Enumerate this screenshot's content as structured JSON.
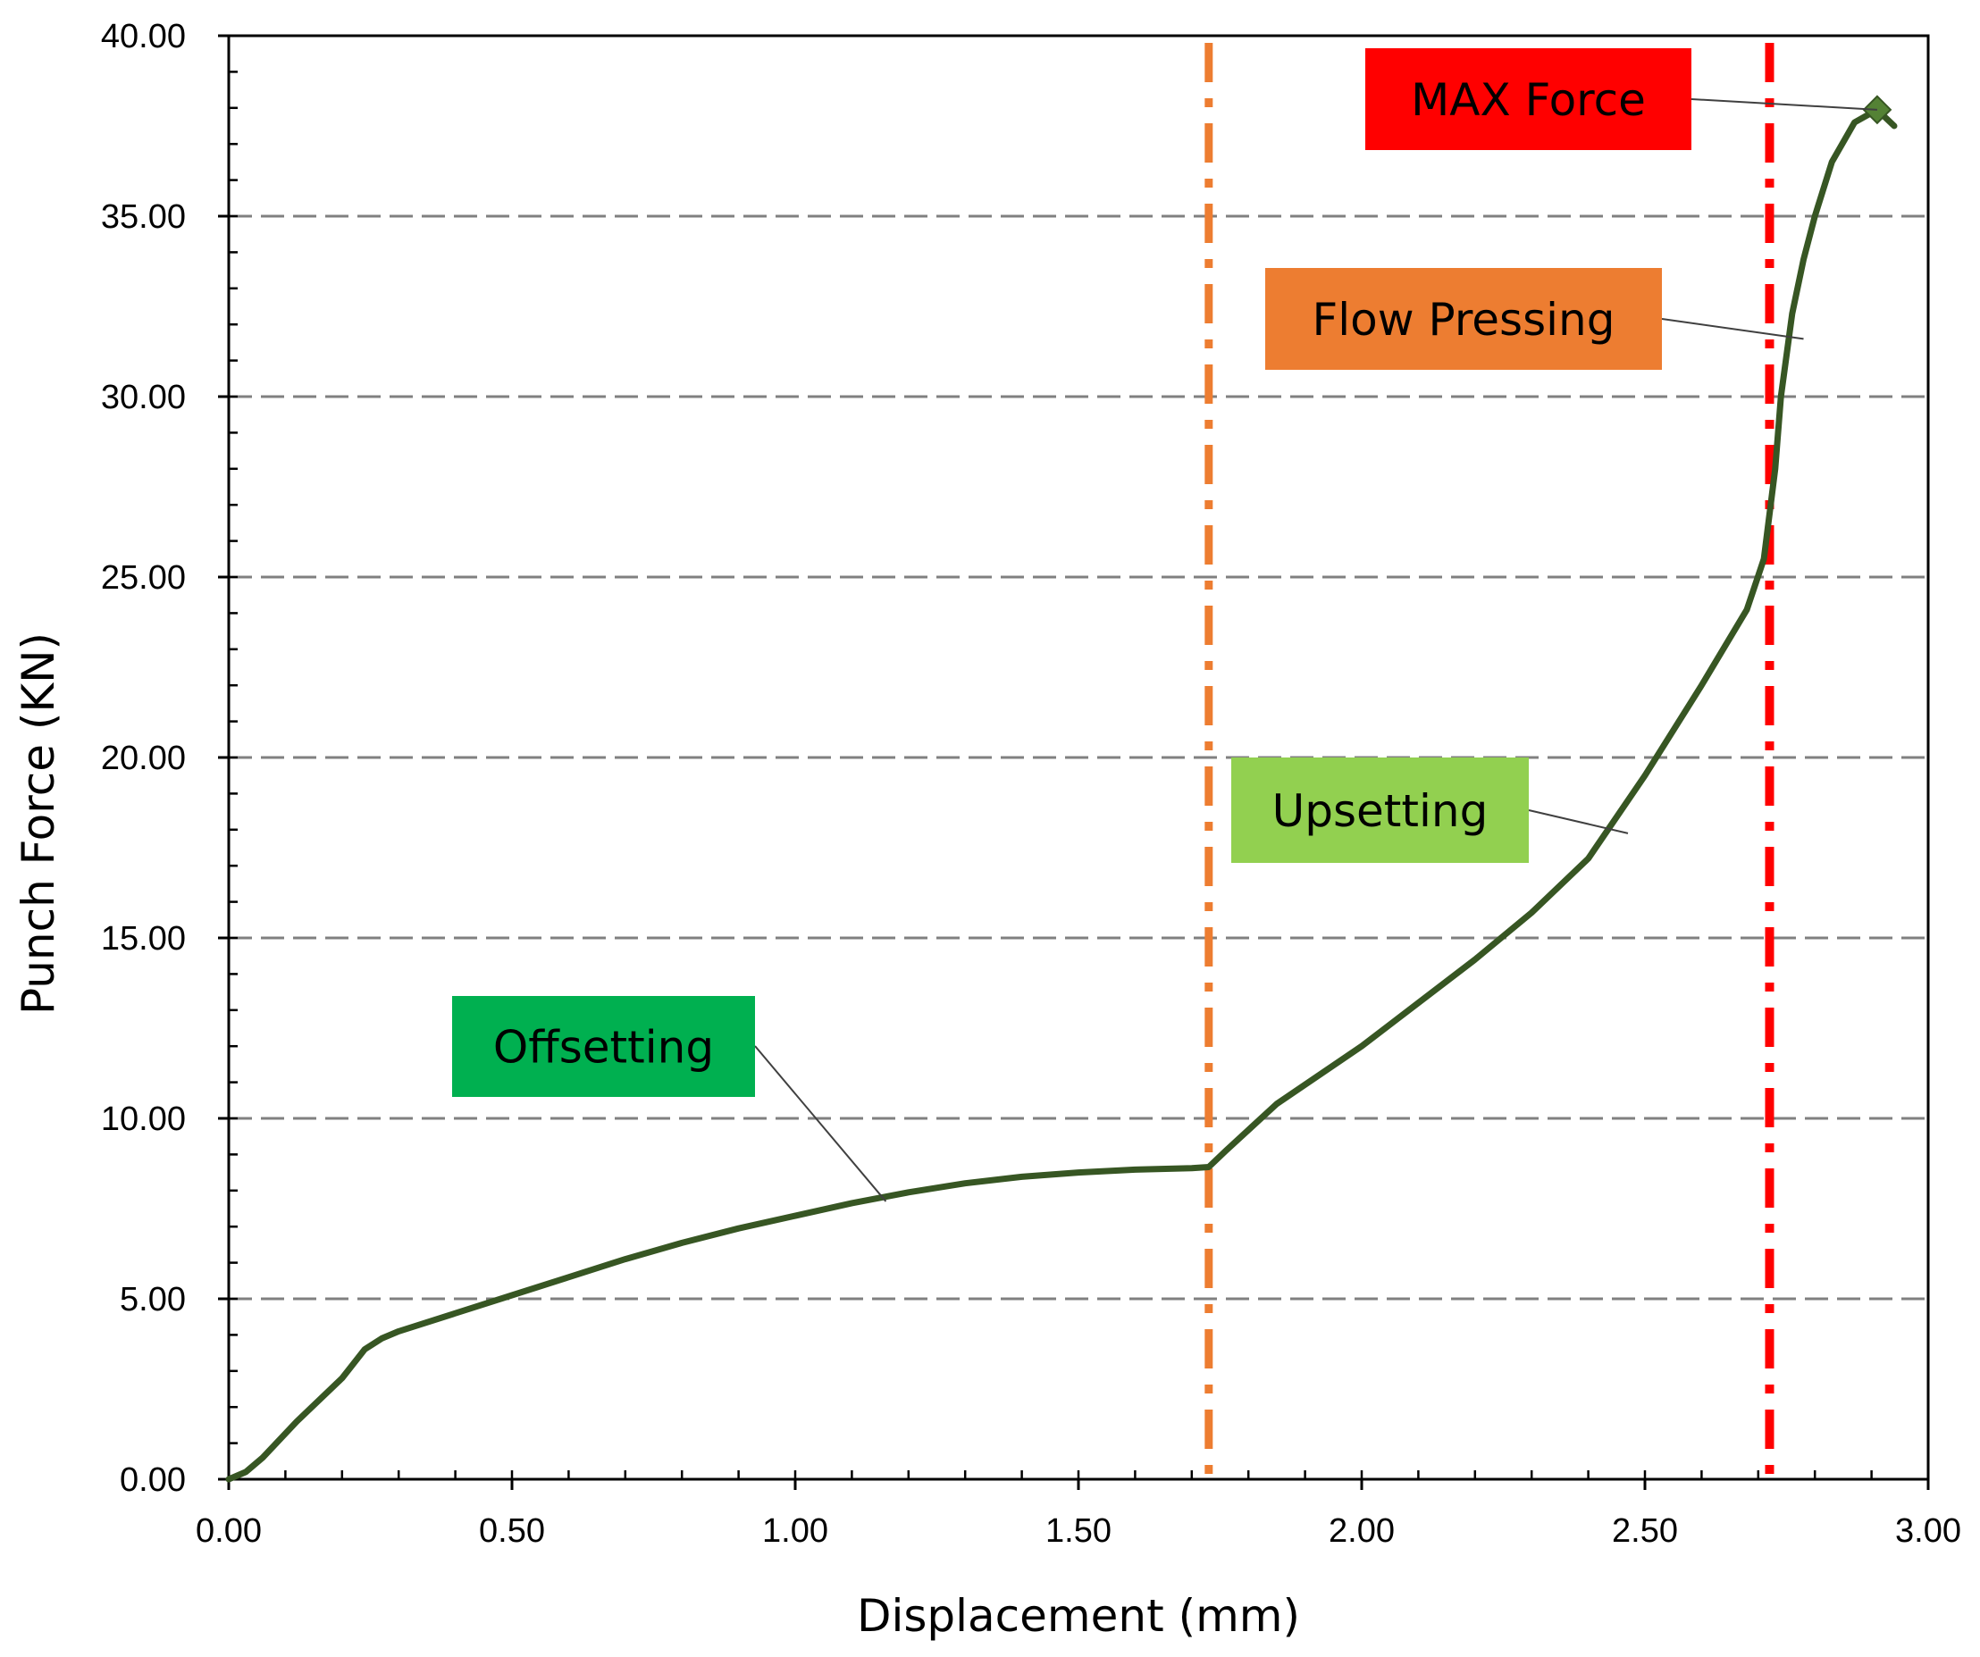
{
  "chart_data": {
    "type": "line",
    "xlabel": "Displacement (mm)",
    "ylabel": "Punch Force (KN)",
    "xlim": [
      0,
      3
    ],
    "ylim": [
      0,
      40
    ],
    "x_ticks": [
      "0.00",
      "0.50",
      "1.00",
      "1.50",
      "2.00",
      "2.50",
      "3.00"
    ],
    "y_ticks": [
      "0.00",
      "5.00",
      "10.00",
      "15.00",
      "20.00",
      "25.00",
      "30.00",
      "35.00",
      "40.00"
    ],
    "grid": "horizontal dashed",
    "series": [
      {
        "name": "Punch force curve",
        "color": "#375623",
        "x": [
          0.0,
          0.03,
          0.06,
          0.12,
          0.2,
          0.24,
          0.27,
          0.3,
          0.4,
          0.5,
          0.6,
          0.7,
          0.8,
          0.9,
          1.0,
          1.1,
          1.2,
          1.3,
          1.4,
          1.5,
          1.6,
          1.7,
          1.73,
          1.76,
          1.85,
          2.0,
          2.1,
          2.2,
          2.3,
          2.4,
          2.5,
          2.6,
          2.68,
          2.71,
          2.73,
          2.74,
          2.76,
          2.78,
          2.8,
          2.83,
          2.87,
          2.91,
          2.94
        ],
        "y": [
          0.0,
          0.2,
          0.6,
          1.6,
          2.8,
          3.6,
          3.9,
          4.1,
          4.6,
          5.1,
          5.6,
          6.1,
          6.55,
          6.95,
          7.3,
          7.65,
          7.95,
          8.2,
          8.38,
          8.5,
          8.58,
          8.62,
          8.65,
          9.1,
          10.4,
          12.0,
          13.2,
          14.4,
          15.7,
          17.2,
          19.5,
          22.0,
          24.1,
          25.5,
          28.0,
          30.0,
          32.3,
          33.8,
          35.0,
          36.5,
          37.6,
          37.95,
          37.5
        ]
      }
    ],
    "max_point": {
      "x": 2.91,
      "y": 37.95
    },
    "vertical_lines": [
      {
        "x": 1.73,
        "color": "#ED7D31",
        "style": "dash-dot"
      },
      {
        "x": 2.72,
        "color": "#FF0000",
        "style": "dash-dot"
      }
    ],
    "annotations": [
      {
        "text": "MAX Force",
        "bg": "#FF0000",
        "target_x": 2.91,
        "target_y": 37.95
      },
      {
        "text": "Flow Pressing",
        "bg": "#ED7D31",
        "target_x": 2.78,
        "target_y": 31.6
      },
      {
        "text": "Upsetting",
        "bg": "#92D050",
        "target_x": 2.47,
        "target_y": 17.9
      },
      {
        "text": "Offsetting",
        "bg": "#00B050",
        "target_x": 1.16,
        "target_y": 7.7
      }
    ]
  }
}
